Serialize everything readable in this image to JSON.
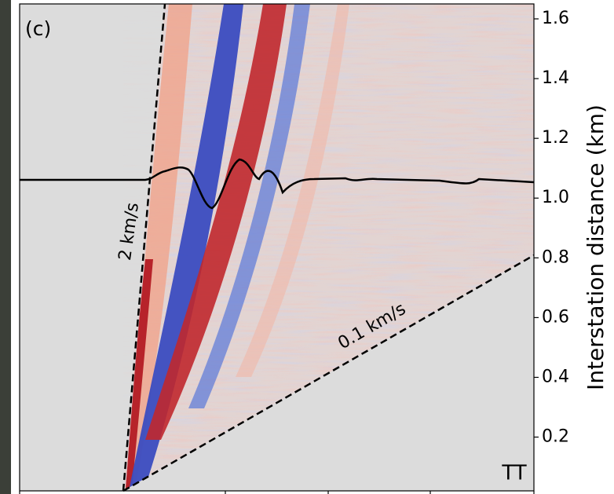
{
  "chart_data": {
    "type": "heatmap",
    "panel_label": "(c)",
    "annotations": [
      "2 km/s",
      "0.1 km/s",
      "TT"
    ],
    "y_axis_label": "Interstation distance (km)",
    "ylim": [
      0.02,
      1.65
    ],
    "yticks": [
      0.2,
      0.4,
      0.6,
      0.8,
      {
        "value": 1.0,
        "label": "1.0"
      },
      1.2,
      1.4,
      1.6
    ]
  }
}
